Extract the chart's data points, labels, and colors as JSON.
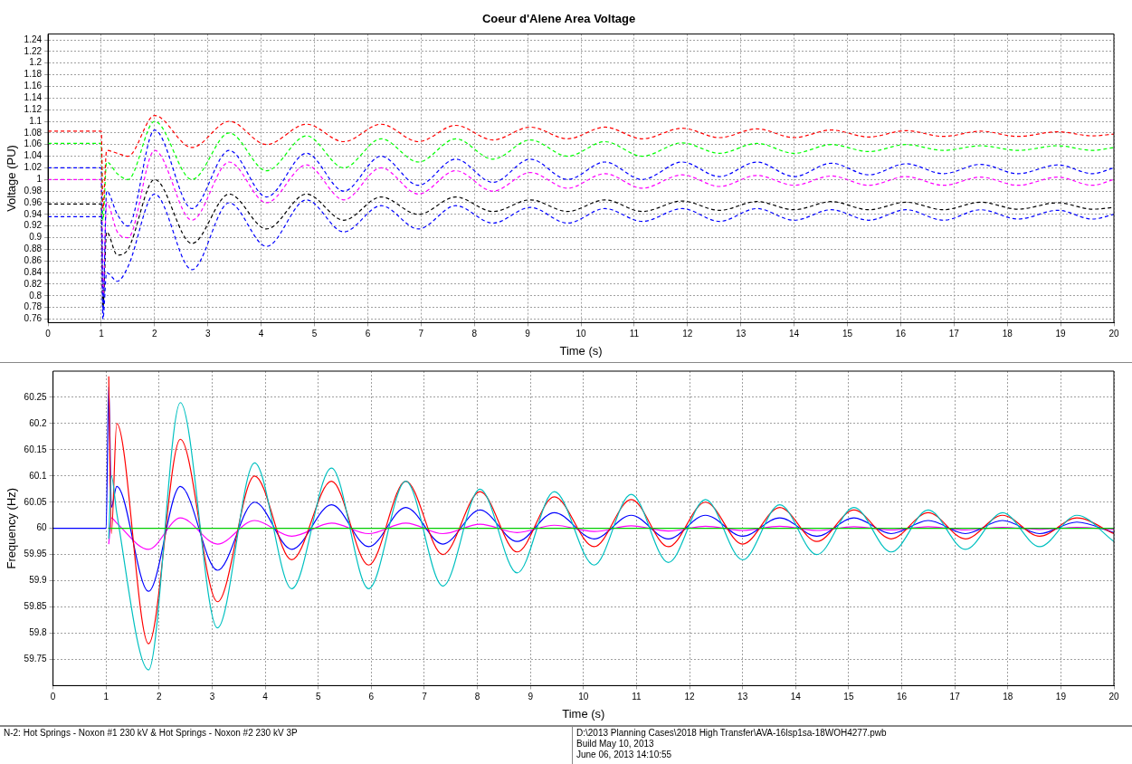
{
  "chart_data": [
    {
      "type": "line",
      "title": "Coeur d'Alene Area Voltage",
      "xlabel": "Time (s)",
      "ylabel": "Voltage (PU)",
      "xlim": [
        0,
        20
      ],
      "xticks": [
        0,
        1,
        2,
        3,
        4,
        5,
        6,
        7,
        8,
        9,
        10,
        11,
        12,
        13,
        14,
        15,
        16,
        17,
        18,
        19,
        20
      ],
      "ylim": [
        0.754,
        1.25
      ],
      "yticks": [
        0.76,
        0.78,
        0.8,
        0.82,
        0.84,
        0.86,
        0.88,
        0.9,
        0.92,
        0.94,
        0.96,
        0.98,
        1,
        1.02,
        1.04,
        1.06,
        1.08,
        1.1,
        1.12,
        1.14,
        1.16,
        1.18,
        1.2,
        1.22,
        1.24
      ],
      "grid": true,
      "legend": false,
      "marker": "none",
      "line_style": "dashed",
      "x": [
        0,
        1,
        1.03,
        1.1,
        1.3,
        1.5,
        2.0,
        2.7,
        3.4,
        4.1,
        4.85,
        5.55,
        6.25,
        6.95,
        7.65,
        8.35,
        9.05,
        9.75,
        10.45,
        11.15,
        11.9,
        12.6,
        13.3,
        14.0,
        14.7,
        15.4,
        16.1,
        16.8,
        17.5,
        18.2,
        18.95,
        19.6,
        20
      ],
      "series": [
        {
          "color": "#ff0000",
          "values": [
            1.083,
            1.083,
            0.95,
            1.05,
            1.045,
            1.04,
            1.11,
            1.055,
            1.1,
            1.06,
            1.095,
            1.065,
            1.095,
            1.065,
            1.093,
            1.068,
            1.09,
            1.07,
            1.09,
            1.07,
            1.088,
            1.072,
            1.087,
            1.072,
            1.085,
            1.073,
            1.084,
            1.074,
            1.083,
            1.074,
            1.082,
            1.075,
            1.078
          ]
        },
        {
          "color": "#00ff00",
          "values": [
            1.062,
            1.062,
            0.93,
            1.03,
            1.01,
            1.0,
            1.1,
            1.0,
            1.08,
            1.015,
            1.075,
            1.02,
            1.07,
            1.03,
            1.07,
            1.035,
            1.068,
            1.04,
            1.065,
            1.04,
            1.063,
            1.045,
            1.062,
            1.045,
            1.06,
            1.048,
            1.06,
            1.05,
            1.058,
            1.05,
            1.058,
            1.05,
            1.055
          ]
        },
        {
          "color": "#0000ff",
          "values": [
            1.02,
            1.02,
            0.77,
            0.98,
            0.94,
            0.92,
            1.085,
            0.95,
            1.05,
            0.97,
            1.045,
            0.98,
            1.04,
            0.99,
            1.035,
            0.995,
            1.035,
            1.0,
            1.03,
            1.0,
            1.03,
            1.005,
            1.03,
            1.005,
            1.028,
            1.008,
            1.027,
            1.01,
            1.026,
            1.01,
            1.025,
            1.01,
            1.02
          ]
        },
        {
          "color": "#ff00ff",
          "values": [
            1.0,
            1.0,
            0.8,
            0.96,
            0.91,
            0.9,
            1.05,
            0.93,
            1.03,
            0.96,
            1.025,
            0.965,
            1.02,
            0.975,
            1.015,
            0.98,
            1.012,
            0.985,
            1.01,
            0.985,
            1.008,
            0.988,
            1.007,
            0.99,
            1.006,
            0.99,
            1.005,
            0.99,
            1.004,
            0.99,
            1.004,
            0.99,
            1.0
          ]
        },
        {
          "color": "#000000",
          "values": [
            0.958,
            0.958,
            0.78,
            0.91,
            0.87,
            0.88,
            1.0,
            0.89,
            0.975,
            0.915,
            0.975,
            0.93,
            0.97,
            0.94,
            0.97,
            0.945,
            0.965,
            0.945,
            0.965,
            0.945,
            0.963,
            0.947,
            0.962,
            0.948,
            0.962,
            0.948,
            0.961,
            0.948,
            0.961,
            0.949,
            0.96,
            0.949,
            0.952
          ]
        },
        {
          "color": "#0000ff",
          "values": [
            0.936,
            0.936,
            0.76,
            0.84,
            0.825,
            0.85,
            0.975,
            0.845,
            0.96,
            0.885,
            0.965,
            0.91,
            0.955,
            0.915,
            0.955,
            0.925,
            0.952,
            0.925,
            0.95,
            0.928,
            0.95,
            0.928,
            0.95,
            0.93,
            0.948,
            0.93,
            0.948,
            0.93,
            0.948,
            0.932,
            0.947,
            0.932,
            0.94
          ]
        }
      ]
    },
    {
      "type": "line",
      "xlabel": "Time (s)",
      "ylabel": "Frequency (Hz)",
      "xlim": [
        0,
        20
      ],
      "xticks": [
        0,
        1,
        2,
        3,
        4,
        5,
        6,
        7,
        8,
        9,
        10,
        11,
        12,
        13,
        14,
        15,
        16,
        17,
        18,
        19,
        20
      ],
      "ylim": [
        59.7,
        60.3
      ],
      "yticks": [
        59.75,
        59.8,
        59.85,
        59.9,
        59.95,
        60,
        60.05,
        60.1,
        60.15,
        60.2,
        60.25
      ],
      "grid": true,
      "legend": false,
      "marker": "none",
      "line_style": "solid",
      "annotations": [
        "N-2: Hot Springs - Noxon #1 230 kV & Hot Springs - Noxon #2 230 kV 3P",
        "D:\\2013 Planning Cases\\2018 High Transfer\\AVA-16lsp1sa-18WOH4277.pwb",
        "Build May 10, 2013",
        "June 06, 2013 14:10:55"
      ],
      "x": [
        0,
        1,
        1.05,
        1.1,
        1.2,
        1.8,
        2.4,
        3.1,
        3.8,
        4.5,
        5.25,
        5.95,
        6.65,
        7.35,
        8.05,
        8.75,
        9.45,
        10.2,
        10.9,
        11.6,
        12.3,
        13.0,
        13.7,
        14.4,
        15.1,
        15.8,
        16.5,
        17.2,
        17.9,
        18.6,
        19.3,
        20
      ],
      "series": [
        {
          "color": "#00cc00",
          "values": [
            null,
            null,
            60,
            60,
            60,
            60,
            60,
            60,
            60,
            60,
            60,
            60,
            60,
            60,
            60,
            60,
            60,
            60,
            60,
            60,
            60,
            60,
            60,
            60,
            60,
            60,
            60,
            60,
            60,
            60,
            60,
            60
          ]
        },
        {
          "color": "#00c0c0",
          "values": [
            null,
            null,
            59.98,
            60.1,
            60.03,
            59.73,
            60.24,
            59.81,
            60.125,
            59.885,
            60.115,
            59.885,
            60.09,
            59.89,
            60.075,
            59.915,
            60.07,
            59.93,
            60.065,
            59.935,
            60.055,
            59.94,
            60.045,
            59.95,
            60.04,
            59.955,
            60.035,
            59.96,
            60.03,
            59.965,
            60.025,
            59.975
          ]
        },
        {
          "color": "#ff0000",
          "values": [
            null,
            null,
            60.29,
            59.99,
            60.2,
            59.78,
            60.17,
            59.86,
            60.1,
            59.94,
            60.09,
            59.93,
            60.09,
            59.95,
            60.07,
            59.955,
            60.06,
            59.965,
            60.055,
            59.965,
            60.05,
            59.97,
            60.04,
            59.975,
            60.035,
            59.98,
            60.03,
            59.98,
            60.025,
            59.985,
            60.02,
            59.99
          ]
        },
        {
          "color": "#0000ff",
          "values": [
            60,
            60,
            60.27,
            60.04,
            60.08,
            59.88,
            60.08,
            59.92,
            60.05,
            59.96,
            60.045,
            59.965,
            60.04,
            59.97,
            60.035,
            59.975,
            60.03,
            59.98,
            60.025,
            59.98,
            60.025,
            59.985,
            60.02,
            59.985,
            60.02,
            59.99,
            60.015,
            59.99,
            60.015,
            59.99,
            60.012,
            59.992
          ]
        },
        {
          "color": "#ff00ff",
          "values": [
            null,
            null,
            59.97,
            60.02,
            60.01,
            59.96,
            60.02,
            59.97,
            60.015,
            59.985,
            60.01,
            59.99,
            60.01,
            59.99,
            60.008,
            59.992,
            60.006,
            59.994,
            60.005,
            59.995,
            60.004,
            59.996,
            60.004,
            59.996,
            60.003,
            59.997,
            60.003,
            59.997,
            60.002,
            59.998,
            60.002,
            59.998
          ]
        }
      ]
    }
  ]
}
